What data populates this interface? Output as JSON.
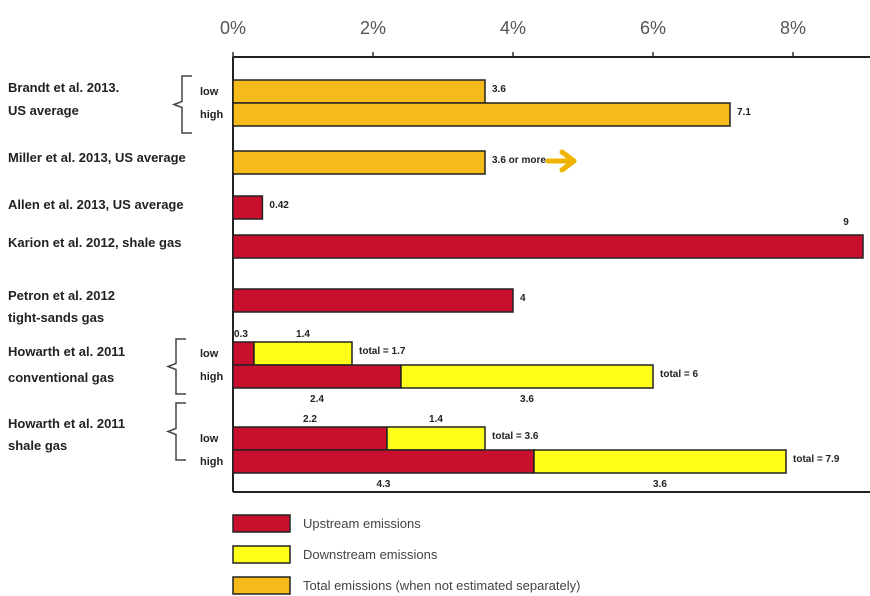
{
  "chart_data": {
    "type": "bar",
    "orientation": "horizontal",
    "stacked": true,
    "xlim": [
      0,
      9
    ],
    "x_unit": "%",
    "x_ticks": [
      {
        "value": 0,
        "label": "0%"
      },
      {
        "value": 2,
        "label": "2%"
      },
      {
        "value": 4,
        "label": "4%"
      },
      {
        "value": 6,
        "label": "6%"
      },
      {
        "value": 8,
        "label": "8%"
      }
    ],
    "grid": false,
    "legend_position": "bottom-left",
    "colors": {
      "upstream": "#c8102e",
      "downstream": "#ffff1a",
      "total": "#f5bb1a",
      "outline": "#222222",
      "arrow": "#f0b400"
    },
    "series": [
      {
        "name": "Upstream emissions",
        "key": "upstream"
      },
      {
        "name": "Downstream emissions",
        "key": "downstream"
      },
      {
        "name": "Total emissions (when not estimated separately)",
        "key": "total"
      }
    ],
    "studies": [
      {
        "label_lines": [
          "Brandt et al. 2013.",
          "US average"
        ],
        "bracket": true
      },
      {
        "label_lines": [
          "Miller et al. 2013, US average"
        ],
        "bracket": false
      },
      {
        "label_lines": [
          "Allen et al. 2013, US average"
        ],
        "bracket": false
      },
      {
        "label_lines": [
          "Karion et al. 2012, shale gas"
        ],
        "bracket": false
      },
      {
        "label_lines": [
          "Petron et al. 2012",
          "tight-sands gas"
        ],
        "bracket": false
      },
      {
        "label_lines": [
          "Howarth et al. 2011",
          "conventional gas"
        ],
        "bracket": true
      },
      {
        "label_lines": [
          "Howarth et al. 2011",
          "shale gas"
        ],
        "bracket": true
      }
    ],
    "bars": [
      {
        "study": 0,
        "sublabel": "low",
        "segments": [
          {
            "series": "total",
            "value": 3.6
          }
        ],
        "end_label": "3.6",
        "labels": []
      },
      {
        "study": 0,
        "sublabel": "high",
        "segments": [
          {
            "series": "total",
            "value": 7.1
          }
        ],
        "end_label": "7.1",
        "labels": []
      },
      {
        "study": 1,
        "sublabel": "",
        "segments": [
          {
            "series": "total",
            "value": 3.6
          }
        ],
        "end_label": "3.6 or more",
        "arrow": true,
        "labels": []
      },
      {
        "study": 2,
        "sublabel": "",
        "segments": [
          {
            "series": "upstream",
            "value": 0.42
          }
        ],
        "end_label": "0.42",
        "labels": []
      },
      {
        "study": 3,
        "sublabel": "",
        "segments": [
          {
            "series": "upstream",
            "value": 9
          }
        ],
        "end_label": "",
        "top_label": "9",
        "labels": []
      },
      {
        "study": 4,
        "sublabel": "",
        "segments": [
          {
            "series": "upstream",
            "value": 4
          }
        ],
        "end_label": "4",
        "labels": []
      },
      {
        "study": 5,
        "sublabel": "low",
        "segments": [
          {
            "series": "upstream",
            "value": 0.3
          },
          {
            "series": "downstream",
            "value": 1.4
          }
        ],
        "end_label": "total = 1.7",
        "labels": [
          {
            "text": "0.3",
            "seg": 0,
            "pos": "above"
          },
          {
            "text": "1.4",
            "seg": 1,
            "pos": "above"
          }
        ]
      },
      {
        "study": 5,
        "sublabel": "high",
        "segments": [
          {
            "series": "upstream",
            "value": 2.4
          },
          {
            "series": "downstream",
            "value": 3.6
          }
        ],
        "end_label": "total = 6",
        "labels": [
          {
            "text": "2.4",
            "seg": 0,
            "pos": "below"
          },
          {
            "text": "3.6",
            "seg": 1,
            "pos": "below"
          }
        ]
      },
      {
        "study": 6,
        "sublabel": "low",
        "segments": [
          {
            "series": "upstream",
            "value": 2.2
          },
          {
            "series": "downstream",
            "value": 1.4
          }
        ],
        "end_label": "total = 3.6",
        "labels": [
          {
            "text": "2.2",
            "seg": 0,
            "pos": "above"
          },
          {
            "text": "1.4",
            "seg": 1,
            "pos": "above"
          }
        ]
      },
      {
        "study": 6,
        "sublabel": "high",
        "segments": [
          {
            "series": "upstream",
            "value": 4.3
          },
          {
            "series": "downstream",
            "value": 3.6
          }
        ],
        "end_label": "total = 7.9",
        "labels": [
          {
            "text": "4.3",
            "seg": 0,
            "pos": "below"
          },
          {
            "text": "3.6",
            "seg": 1,
            "pos": "below"
          }
        ]
      }
    ]
  }
}
